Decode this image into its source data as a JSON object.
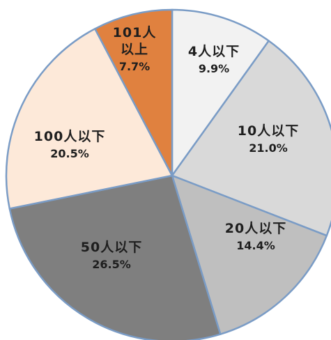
{
  "chart_data": {
    "type": "pie",
    "start_angle_deg": 0,
    "direction": "clockwise",
    "slices": [
      {
        "label_lines": [
          "4人以下"
        ],
        "percent_label": "9.9%",
        "value": 9.9,
        "color": "#f2f2f2"
      },
      {
        "label_lines": [
          "10人以下"
        ],
        "percent_label": "21.0%",
        "value": 21.0,
        "color": "#d9d9d9"
      },
      {
        "label_lines": [
          "20人以下"
        ],
        "percent_label": "14.4%",
        "value": 14.4,
        "color": "#bfbfbf"
      },
      {
        "label_lines": [
          "50人以下"
        ],
        "percent_label": "26.5%",
        "value": 26.5,
        "color": "#7f7f7f"
      },
      {
        "label_lines": [
          "100人以下"
        ],
        "percent_label": "20.5%",
        "value": 20.5,
        "color": "#fde9d9"
      },
      {
        "label_lines": [
          "101人",
          "以上"
        ],
        "percent_label": "7.7%",
        "value": 7.7,
        "color": "#e0813f"
      }
    ],
    "border_color": "#7a9cc6"
  }
}
